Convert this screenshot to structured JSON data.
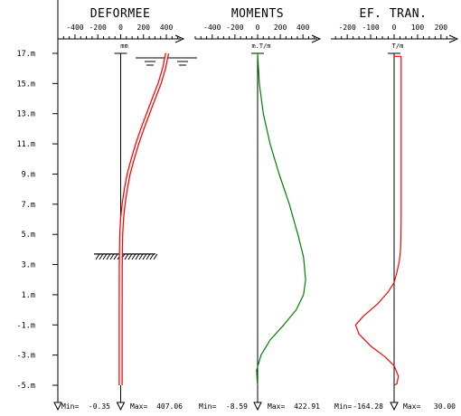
{
  "chart_data": {
    "type": "line",
    "yaxis": {
      "ticks": [
        "17.m",
        "15.m",
        "13.m",
        "11.m",
        "9.m",
        "7.m",
        "5.m",
        "3.m",
        "1.m",
        "-1.m",
        "-3.m",
        "-5.m"
      ],
      "tick_values": [
        17,
        15,
        13,
        11,
        9,
        7,
        5,
        3,
        1,
        -1,
        -3,
        -5
      ],
      "ylim": [
        -5.8,
        17.8
      ]
    },
    "panels": [
      {
        "title": "DEFORMEE",
        "unit": "mm",
        "tick_labels": [
          "-400",
          "-200",
          "0",
          "200",
          "400"
        ],
        "tick_values": [
          -400,
          -200,
          0,
          200,
          400
        ],
        "xlim": [
          -550,
          550
        ],
        "min_label": "Min=",
        "min_value": "-0.35",
        "max_label": "Max=",
        "max_value": "407.06",
        "color": "#ff0000",
        "double_line": true,
        "series": {
          "x": [
            407,
            380,
            340,
            290,
            240,
            190,
            145,
            105,
            70,
            45,
            25,
            12,
            5,
            1,
            0,
            -0.35
          ],
          "y": [
            17,
            16,
            15,
            14,
            13,
            12,
            11,
            10,
            9,
            8,
            7,
            6,
            5,
            3,
            0,
            -5
          ]
        },
        "water_level_y": 16.7,
        "ground_level_y": 3.7
      },
      {
        "title": "MOMENTS",
        "unit": "m.T/m",
        "tick_labels": [
          "-400",
          "-200",
          "0",
          "200",
          "400"
        ],
        "tick_values": [
          -400,
          -200,
          0,
          200,
          400
        ],
        "xlim": [
          -550,
          550
        ],
        "min_label": "Min=",
        "min_value": "-8.59",
        "max_label": "Max=",
        "max_value": "422.91",
        "color": "#008000",
        "double_line": false,
        "series": {
          "x": [
            0,
            15,
            50,
            110,
            190,
            280,
            355,
            405,
            422.91,
            405,
            340,
            230,
            110,
            30,
            -8.59,
            -3,
            0
          ],
          "y": [
            17,
            15,
            13,
            11,
            9,
            7,
            5,
            3.5,
            2,
            1,
            0,
            -1,
            -2,
            -3,
            -4,
            -4.8,
            -5
          ]
        }
      },
      {
        "title": "EF. TRAN.",
        "unit": "T/m",
        "tick_labels": [
          "-200",
          "-100",
          "0",
          "100",
          "200"
        ],
        "tick_values": [
          -200,
          -100,
          0,
          100,
          200
        ],
        "xlim": [
          -270,
          270
        ],
        "min_label": "Min=",
        "min_value": "-164.28",
        "max_label": "Max=",
        "max_value": "30.00",
        "color": "#ff0000",
        "double_line": false,
        "series": {
          "x": [
            0,
            30,
            30,
            30,
            29,
            27,
            22,
            12,
            0,
            -25,
            -70,
            -130,
            -164.28,
            -150,
            -100,
            -40,
            0,
            18,
            12,
            0
          ],
          "y": [
            16.8,
            16.8,
            10,
            6,
            4.6,
            3.9,
            3.2,
            2.5,
            1.8,
            1.2,
            0.4,
            -0.4,
            -1,
            -1.6,
            -2.4,
            -3.1,
            -3.7,
            -4.4,
            -4.9,
            -5
          ]
        }
      }
    ]
  }
}
